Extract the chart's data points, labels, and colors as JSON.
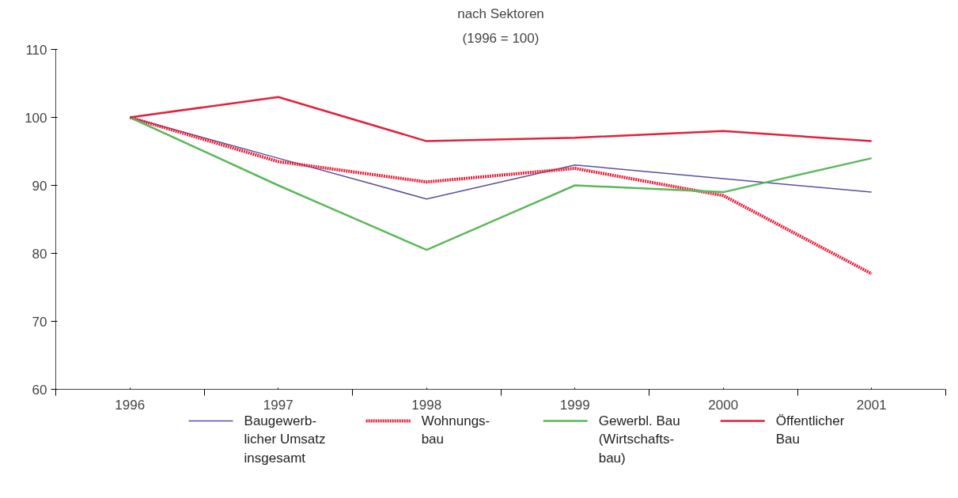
{
  "chart_data": {
    "type": "line",
    "title": "nach Sektoren",
    "subtitle": "(1996 = 100)",
    "categories": [
      "1996",
      "1997",
      "1998",
      "1999",
      "2000",
      "2001"
    ],
    "series": [
      {
        "name": "Baugewerb-\nlicher Umsatz\ninsgesamt",
        "color": "#5b4fa0",
        "values": [
          100,
          94,
          88,
          93,
          91,
          89
        ]
      },
      {
        "name": "Wohnungs-\nbau",
        "color": "#e3203a",
        "line_style": "dotted",
        "values": [
          100,
          93.5,
          90.5,
          92.5,
          88.5,
          77
        ]
      },
      {
        "name": "Gewerbl. Bau\n(Wirtschafts-\nbau)",
        "color": "#5cb85a",
        "values": [
          100,
          90,
          80.5,
          90,
          89,
          94
        ]
      },
      {
        "name": "Öffentlicher\nBau",
        "color": "#e3203a",
        "values": [
          100,
          103,
          96.5,
          97,
          98,
          96.5
        ]
      }
    ],
    "ylim": [
      60,
      110
    ],
    "yticks": [
      60,
      70,
      80,
      90,
      100,
      110
    ],
    "grid": false,
    "legend": "bottom",
    "marker": "none"
  }
}
